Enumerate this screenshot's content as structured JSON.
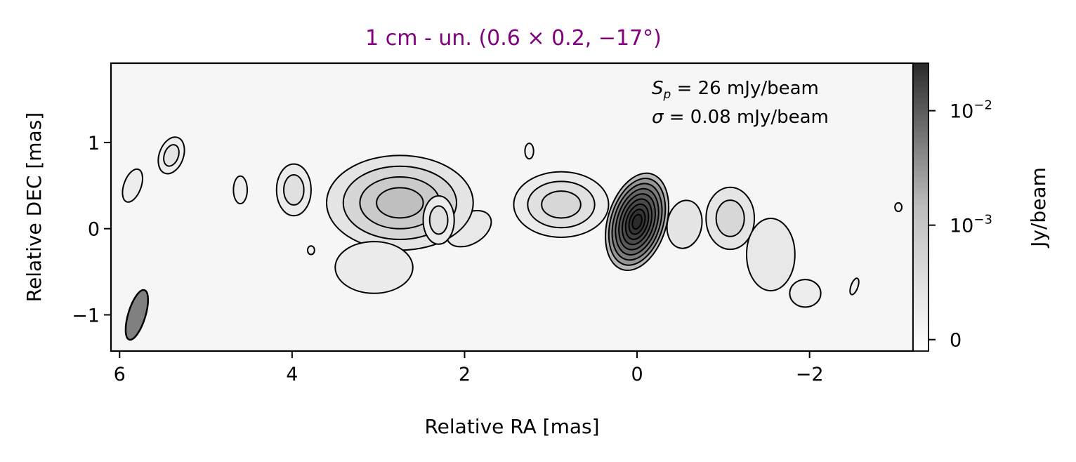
{
  "chart_data": {
    "type": "heatmap",
    "title": "1 cm - un. (0.6 × 0.2, −17°)",
    "title_color": "#800080",
    "xlabel": "Relative RA [mas]",
    "ylabel": "Relative DEC [mas]",
    "xlim": [
      6.1,
      -3.2
    ],
    "ylim": [
      -1.42,
      1.92
    ],
    "xticks": [
      {
        "value": 6,
        "label": "6"
      },
      {
        "value": 4,
        "label": "4"
      },
      {
        "value": 2,
        "label": "2"
      },
      {
        "value": 0,
        "label": "0"
      },
      {
        "value": -2,
        "label": "−2"
      }
    ],
    "yticks": [
      {
        "value": 1,
        "label": "1"
      },
      {
        "value": 0,
        "label": "0"
      },
      {
        "value": -1,
        "label": "−1"
      }
    ],
    "annotation_lines": [
      "S_p = 26 mJy/beam",
      "σ = 0.08 mJy/beam"
    ],
    "beam": {
      "ra": 5.8,
      "dec": -1.0,
      "major": 0.6,
      "minor": 0.2,
      "pa_deg": -17,
      "color": "#808080"
    },
    "colorbar": {
      "label": "Jy/beam",
      "scale": "symlog",
      "vmin": -0.0001,
      "vmax": 0.026,
      "ticks": [
        {
          "value": 0.01,
          "label": "10",
          "exp": "−2"
        },
        {
          "value": 0.001,
          "label": "10",
          "exp": "−3"
        },
        {
          "value": 0,
          "label": "0",
          "exp": ""
        }
      ],
      "colors": [
        "#ffffff",
        "#2b2b2b"
      ]
    },
    "components": [
      {
        "name": "core",
        "ra": 0.0,
        "dec": 0.08,
        "a": 0.34,
        "b": 0.58,
        "pa": -17,
        "peak": 0.026,
        "levels": 9
      },
      {
        "name": "jet-a",
        "ra": -0.55,
        "dec": 0.05,
        "a": 0.2,
        "b": 0.28,
        "pa": -10,
        "peak": 0.0006,
        "levels": 1
      },
      {
        "name": "jet-b",
        "ra": -1.08,
        "dec": 0.12,
        "a": 0.28,
        "b": 0.36,
        "pa": 0,
        "peak": 0.0012,
        "levels": 2
      },
      {
        "name": "jet-c",
        "ra": -1.55,
        "dec": -0.3,
        "a": 0.28,
        "b": 0.42,
        "pa": 0,
        "peak": 0.0005,
        "levels": 1
      },
      {
        "name": "jet-d",
        "ra": -1.95,
        "dec": -0.75,
        "a": 0.18,
        "b": 0.16,
        "pa": 0,
        "peak": 0.0003,
        "levels": 1
      },
      {
        "name": "counter-a",
        "ra": 0.88,
        "dec": 0.28,
        "a": 0.55,
        "b": 0.38,
        "pa": 0,
        "peak": 0.0012,
        "levels": 3
      },
      {
        "name": "counter-b",
        "ra": 1.95,
        "dec": 0.0,
        "a": 0.28,
        "b": 0.18,
        "pa": 30,
        "peak": 0.0005,
        "levels": 1
      },
      {
        "name": "counter-c",
        "ra": 2.75,
        "dec": 0.3,
        "a": 0.85,
        "b": 0.55,
        "pa": 0,
        "peak": 0.0025,
        "levels": 4
      },
      {
        "name": "counter-d",
        "ra": 2.3,
        "dec": 0.1,
        "a": 0.18,
        "b": 0.28,
        "pa": 0,
        "peak": 0.0008,
        "levels": 2
      },
      {
        "name": "counter-e",
        "ra": 3.05,
        "dec": -0.45,
        "a": 0.45,
        "b": 0.3,
        "pa": 0,
        "peak": 0.0004,
        "levels": 1
      },
      {
        "name": "blob-1",
        "ra": 3.98,
        "dec": 0.45,
        "a": 0.2,
        "b": 0.3,
        "pa": 0,
        "peak": 0.0008,
        "levels": 2
      },
      {
        "name": "blob-2",
        "ra": 4.6,
        "dec": 0.45,
        "a": 0.08,
        "b": 0.16,
        "pa": 0,
        "peak": 0.0003,
        "levels": 1
      },
      {
        "name": "blob-3",
        "ra": 5.4,
        "dec": 0.85,
        "a": 0.14,
        "b": 0.22,
        "pa": -20,
        "peak": 0.0006,
        "levels": 2
      },
      {
        "name": "blob-4",
        "ra": 5.85,
        "dec": 0.5,
        "a": 0.1,
        "b": 0.2,
        "pa": -20,
        "peak": 0.0003,
        "levels": 1
      },
      {
        "name": "blob-5",
        "ra": 1.25,
        "dec": 0.9,
        "a": 0.05,
        "b": 0.09,
        "pa": 0,
        "peak": 0.0002,
        "levels": 1
      },
      {
        "name": "blob-6",
        "ra": 3.78,
        "dec": -0.25,
        "a": 0.04,
        "b": 0.05,
        "pa": 0,
        "peak": 0.0002,
        "levels": 1
      },
      {
        "name": "blob-7",
        "ra": -2.52,
        "dec": -0.67,
        "a": 0.04,
        "b": 0.1,
        "pa": -20,
        "peak": 0.0002,
        "levels": 1
      },
      {
        "name": "blob-8",
        "ra": -3.03,
        "dec": 0.25,
        "a": 0.04,
        "b": 0.05,
        "pa": 0,
        "peak": 0.0002,
        "levels": 1
      }
    ]
  }
}
